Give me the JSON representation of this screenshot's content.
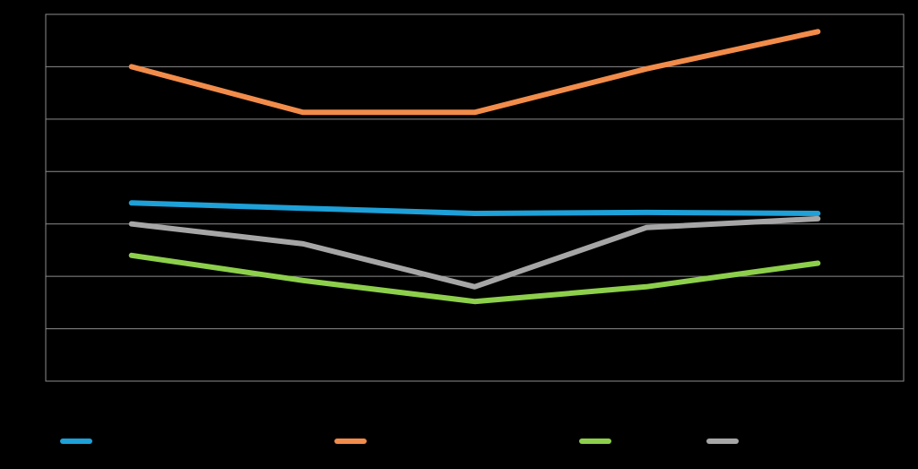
{
  "chart_data": {
    "type": "line",
    "categories": [
      "",
      "",
      "",
      "",
      ""
    ],
    "ylim": [
      0,
      7
    ],
    "grid": true,
    "legend_position": "bottom",
    "series": [
      {
        "name": "",
        "color": "#1ea0d8",
        "values": [
          3.4,
          3.3,
          3.2,
          3.22,
          3.2
        ]
      },
      {
        "name": "",
        "color": "#f28c4a",
        "values": [
          6.0,
          5.13,
          5.13,
          5.96,
          6.67
        ]
      },
      {
        "name": "",
        "color": "#8dcf4b",
        "values": [
          2.4,
          1.92,
          1.52,
          1.8,
          2.25
        ]
      },
      {
        "name": "",
        "color": "#a6a6a6",
        "values": [
          3.0,
          2.62,
          1.8,
          2.93,
          3.1
        ]
      }
    ]
  },
  "colors": {
    "background": "#000000",
    "plot_border": "#8c8c8c",
    "gridline": "#8c8c8c"
  }
}
